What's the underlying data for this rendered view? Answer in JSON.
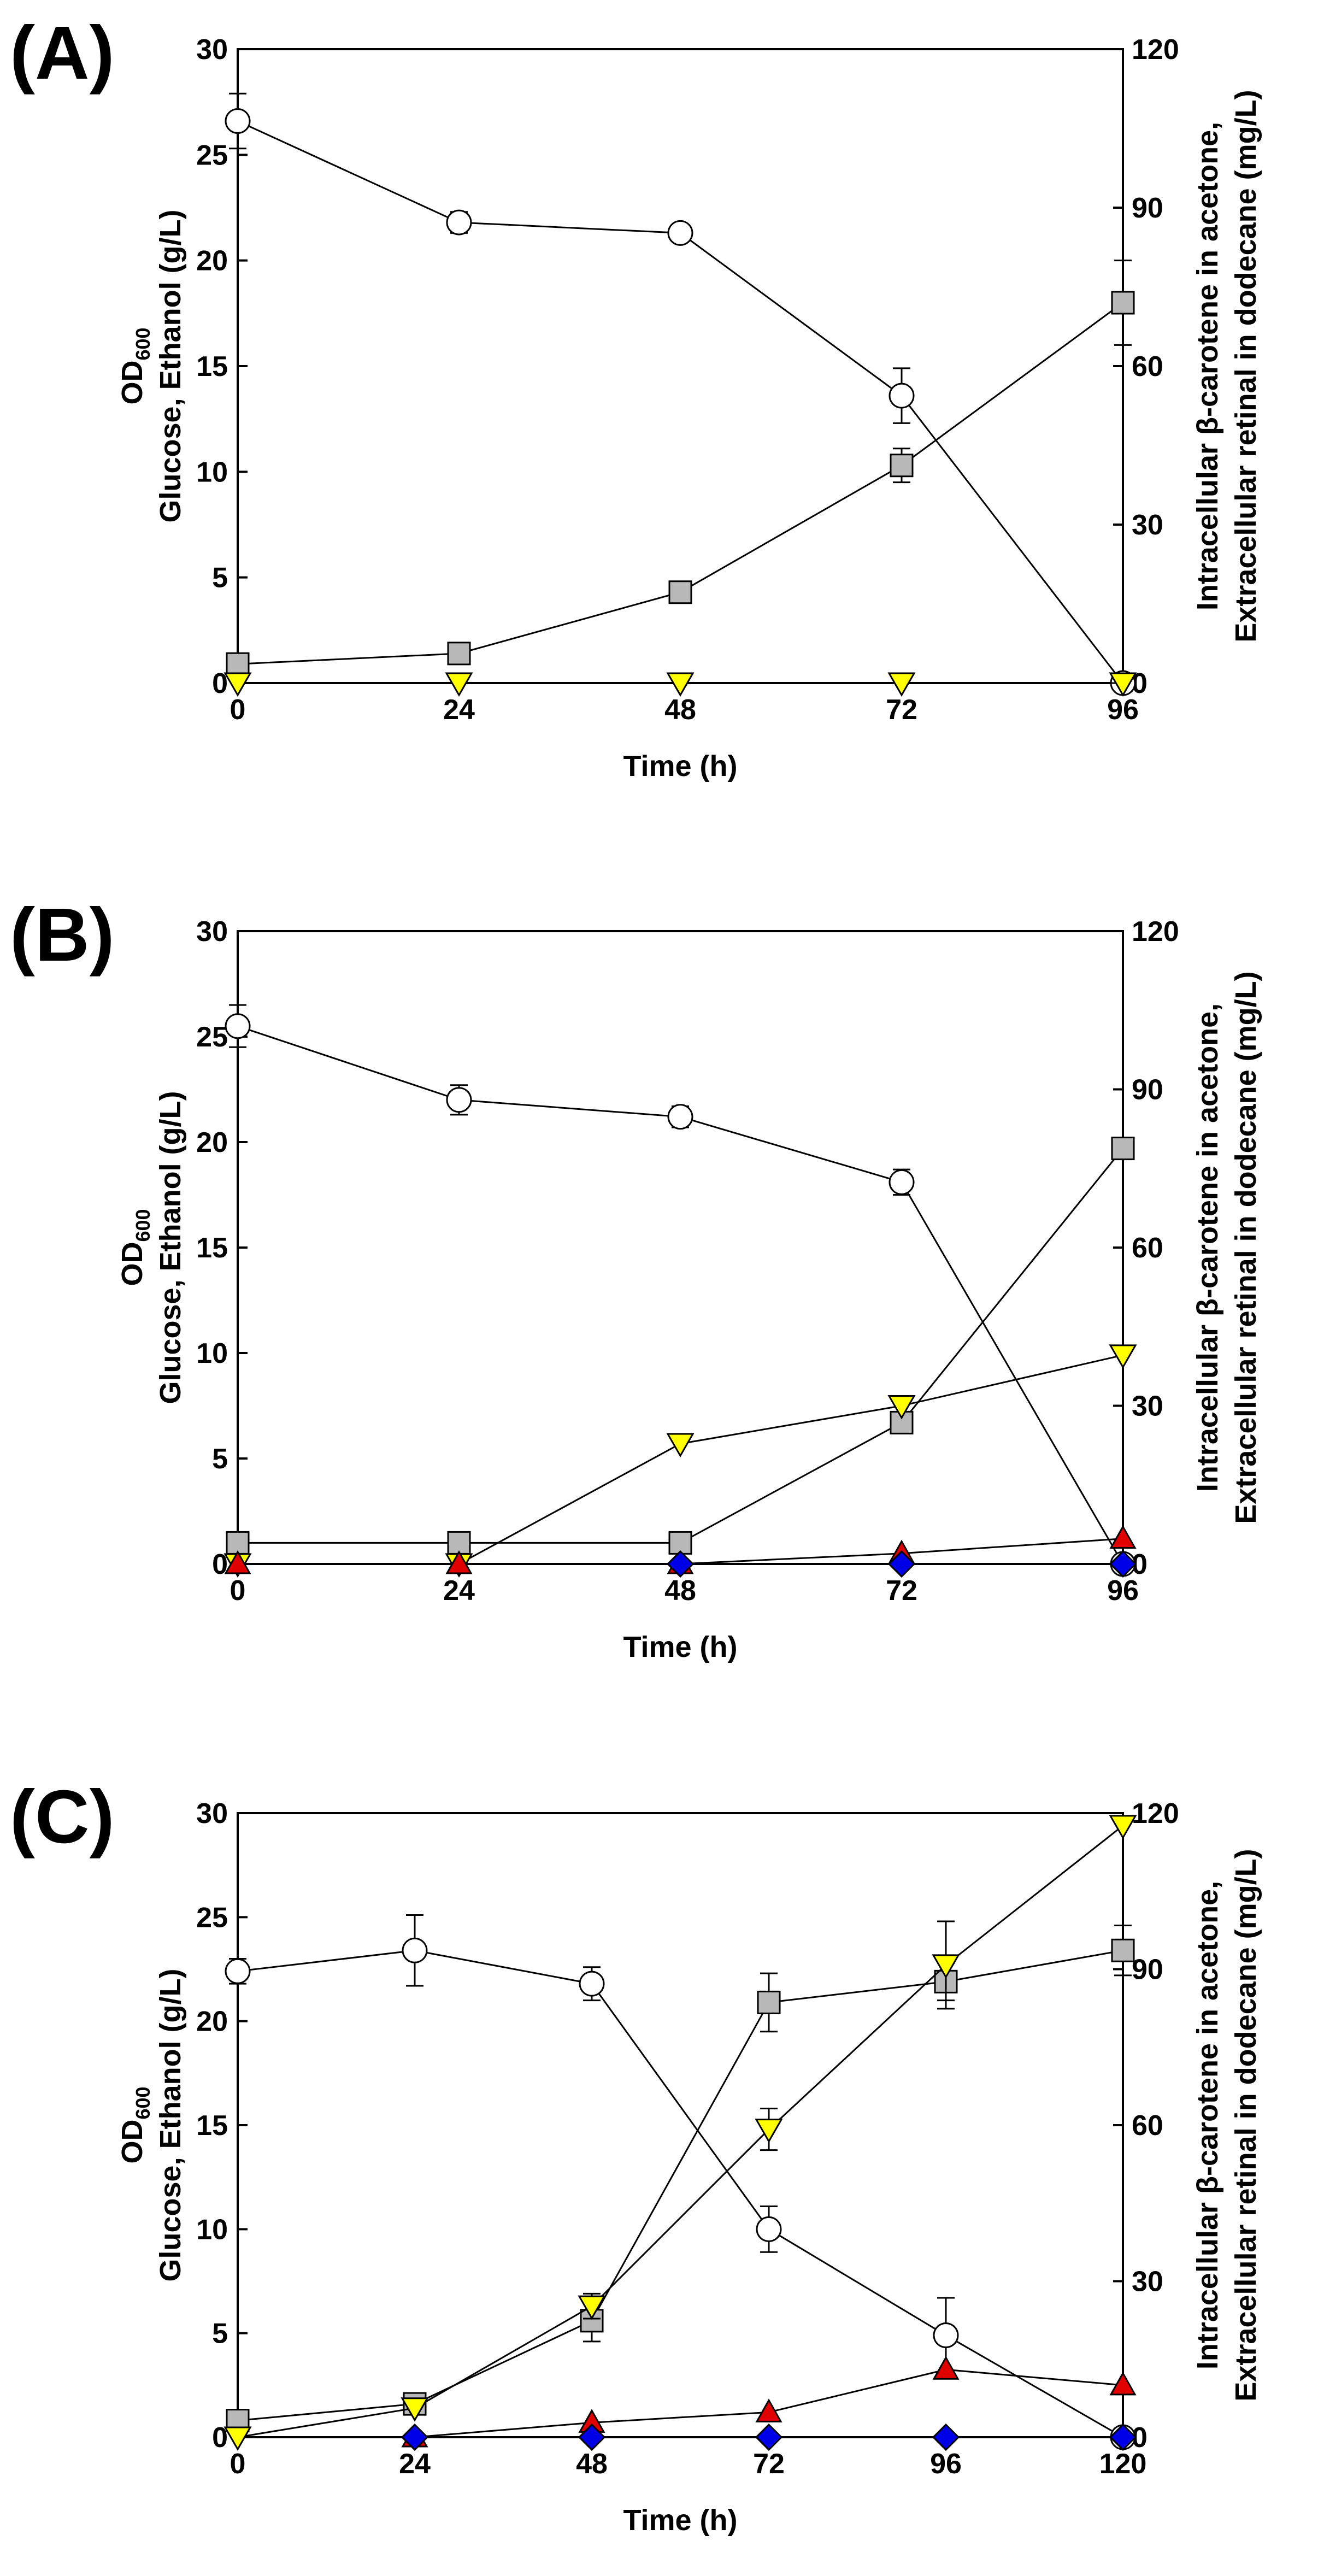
{
  "panels": [
    "(A)",
    "(B)",
    "(C)"
  ],
  "colors": {
    "od600": "#ffffff",
    "glucose": "#b8b8b8",
    "ethanol": "#ffff00",
    "beta_carotene": "#e00000",
    "retinal": "#0000e6",
    "line": "#000000"
  },
  "chart_data": [
    {
      "type": "line",
      "panel": "(A)",
      "xlabel": "Time (h)",
      "ylabel_line1": "OD",
      "ylabel_sub": "600",
      "ylabel_line2": "Glucose, Ethanol (g/L)",
      "y2label_line1": "Intracellular β-carotene in acetone,",
      "y2label_line2": "Extracellular retinal in dodecane (mg/L)",
      "x": [
        0,
        24,
        48,
        72,
        96
      ],
      "xlim": [
        0,
        96
      ],
      "xticks": [
        "0",
        "24",
        "48",
        "72",
        "96"
      ],
      "ylim": [
        0,
        30
      ],
      "yticks": [
        "0",
        "5",
        "10",
        "15",
        "20",
        "25",
        "30"
      ],
      "y2lim": [
        0,
        120
      ],
      "y2ticks": [
        "0",
        "30",
        "60",
        "90",
        "120"
      ],
      "series": [
        {
          "name": "OD600",
          "axis": "left",
          "marker": "circle",
          "values": [
            26.6,
            21.8,
            21.3,
            13.6,
            0
          ],
          "errors": [
            1.3,
            0.5,
            0,
            1.3,
            0
          ]
        },
        {
          "name": "Glucose",
          "axis": "left",
          "marker": "square",
          "values": [
            0.9,
            1.4,
            4.3,
            10.3,
            18.0
          ],
          "errors": [
            0,
            0,
            0,
            0.8,
            2.0
          ]
        },
        {
          "name": "Ethanol",
          "axis": "left",
          "marker": "triangle-down",
          "values": [
            0,
            0,
            0,
            0,
            0
          ],
          "errors": [
            0,
            0,
            0,
            0,
            0
          ]
        }
      ]
    },
    {
      "type": "line",
      "panel": "(B)",
      "xlabel": "Time (h)",
      "ylabel_line1": "OD",
      "ylabel_sub": "600",
      "ylabel_line2": "Glucose, Ethanol (g/L)",
      "y2label_line1": "Intracellular β-carotene in acetone,",
      "y2label_line2": "Extracellular retinal in dodecane (mg/L)",
      "x": [
        0,
        24,
        48,
        72,
        96
      ],
      "xlim": [
        0,
        96
      ],
      "xticks": [
        "0",
        "24",
        "48",
        "72",
        "96"
      ],
      "ylim": [
        0,
        30
      ],
      "yticks": [
        "0",
        "5",
        "10",
        "15",
        "20",
        "25",
        "30"
      ],
      "y2lim": [
        0,
        120
      ],
      "y2ticks": [
        "0",
        "30",
        "60",
        "90",
        "120"
      ],
      "series": [
        {
          "name": "OD600",
          "axis": "left",
          "marker": "circle",
          "values": [
            25.5,
            22.0,
            21.2,
            18.1,
            0
          ],
          "errors": [
            1.0,
            0.7,
            0.5,
            0.6,
            0
          ]
        },
        {
          "name": "Glucose",
          "axis": "left",
          "marker": "square",
          "values": [
            1.0,
            1.0,
            1.0,
            6.7,
            19.7
          ],
          "errors": [
            0,
            0,
            0,
            0,
            0
          ]
        },
        {
          "name": "Ethanol",
          "axis": "left",
          "marker": "triangle-down",
          "values": [
            0,
            0,
            5.7,
            7.5,
            9.9
          ],
          "errors": [
            0,
            0,
            0,
            0,
            0
          ]
        },
        {
          "name": "Intracellular beta-carotene",
          "axis": "right",
          "marker": "triangle-up",
          "values": [
            0,
            0,
            0,
            2,
            4.8
          ],
          "errors": [
            0,
            0,
            0,
            0,
            0
          ]
        },
        {
          "name": "Extracellular retinal",
          "axis": "right",
          "marker": "diamond",
          "values": [
            null,
            null,
            0,
            0,
            0
          ],
          "errors": [
            0,
            0,
            0,
            0,
            0
          ]
        }
      ]
    },
    {
      "type": "line",
      "panel": "(C)",
      "xlabel": "Time (h)",
      "ylabel_line1": "OD",
      "ylabel_sub": "600",
      "ylabel_line2": "Glucose, Ethanol (g/L)",
      "y2label_line1": "Intracellular β-carotene in acetone,",
      "y2label_line2": "Extracellular retinal in dodecane (mg/L)",
      "x": [
        0,
        24,
        48,
        72,
        96,
        120
      ],
      "xlim": [
        0,
        120
      ],
      "xticks": [
        "0",
        "24",
        "48",
        "72",
        "96",
        "120"
      ],
      "ylim": [
        0,
        30
      ],
      "yticks": [
        "0",
        "5",
        "10",
        "15",
        "20",
        "25",
        "30"
      ],
      "y2lim": [
        0,
        120
      ],
      "y2ticks": [
        "0",
        "30",
        "60",
        "90",
        "120"
      ],
      "series": [
        {
          "name": "OD600",
          "axis": "left",
          "marker": "circle",
          "values": [
            22.4,
            23.4,
            21.8,
            10.0,
            4.9,
            0
          ],
          "errors": [
            0.6,
            1.7,
            0.8,
            1.1,
            1.8,
            0
          ]
        },
        {
          "name": "Glucose",
          "axis": "left",
          "marker": "square",
          "values": [
            0.8,
            1.6,
            5.6,
            20.9,
            21.9,
            23.4
          ],
          "errors": [
            0,
            0,
            1.0,
            1.4,
            0.9,
            1.2
          ]
        },
        {
          "name": "Ethanol",
          "axis": "left",
          "marker": "triangle-down",
          "values": [
            0,
            1.4,
            6.3,
            14.8,
            22.7,
            29.4
          ],
          "errors": [
            0,
            0,
            0.6,
            1.0,
            2.1,
            0
          ]
        },
        {
          "name": "Intracellular beta-carotene",
          "axis": "right",
          "marker": "triangle-up",
          "values": [
            null,
            0,
            2.8,
            4.8,
            13.0,
            10.0
          ],
          "errors": [
            0,
            0,
            0,
            0,
            0,
            0
          ]
        },
        {
          "name": "Extracellular retinal",
          "axis": "right",
          "marker": "diamond",
          "values": [
            null,
            0,
            0,
            0,
            0,
            0
          ],
          "errors": [
            0,
            0,
            0,
            0,
            0,
            0
          ]
        }
      ]
    }
  ]
}
